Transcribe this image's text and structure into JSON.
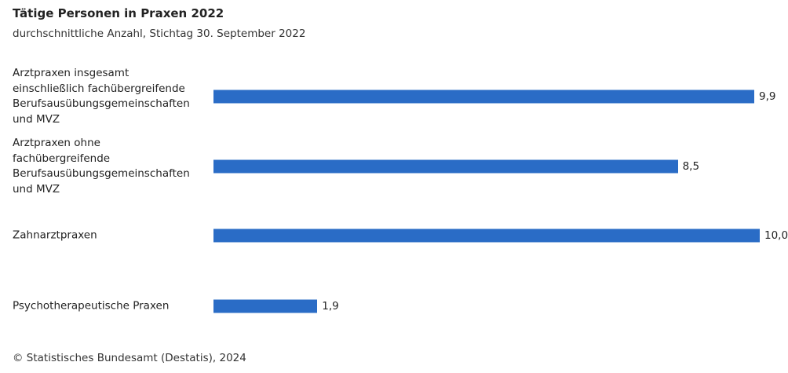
{
  "chart_data": {
    "type": "bar",
    "orientation": "horizontal",
    "title": "Tätige Personen in Praxen 2022",
    "subtitle": "durchschnittliche Anzahl, Stichtag 30. September 2022",
    "categories": [
      "Arztpraxen insgesamt\neinschließlich fachübergreifende\nBerufsausübungsgemeinschaften\nund MVZ",
      "Arztpraxen ohne\nfachübergreifende\nBerufsausübungsgemeinschaften\nund MVZ",
      "Zahnarztpraxen",
      "Psychotherapeutische Praxen"
    ],
    "values": [
      9.9,
      8.5,
      10.0,
      1.9
    ],
    "value_labels": [
      "9,9",
      "8,5",
      "10,0",
      "1,9"
    ],
    "color": "#2a6cc6",
    "source": "© Statistisches Bundesamt (Destatis), 2024"
  }
}
